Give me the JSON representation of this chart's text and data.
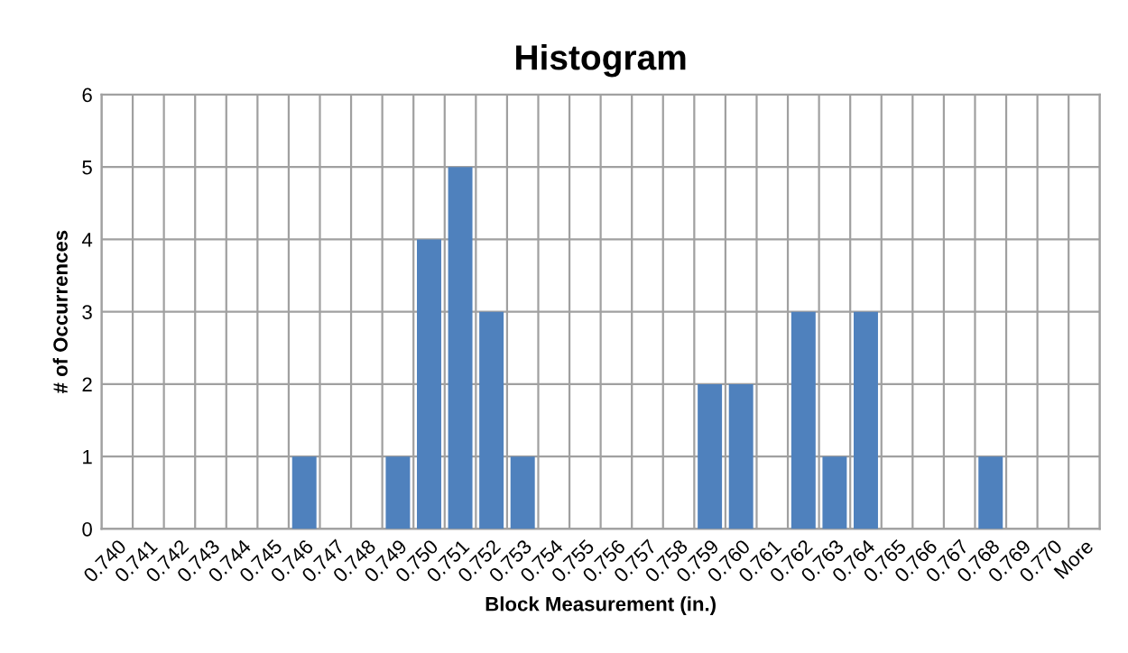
{
  "chart_data": {
    "type": "bar",
    "title": "Histogram",
    "xlabel": "Block Measurement (in.)",
    "ylabel": "# of Occurrences",
    "categories": [
      "0.740",
      "0.741",
      "0.742",
      "0.743",
      "0.744",
      "0.745",
      "0.746",
      "0.747",
      "0.748",
      "0.749",
      "0.750",
      "0.751",
      "0.752",
      "0.753",
      "0.754",
      "0.755",
      "0.756",
      "0.757",
      "0.758",
      "0.759",
      "0.760",
      "0.761",
      "0.762",
      "0.763",
      "0.764",
      "0.765",
      "0.766",
      "0.767",
      "0.768",
      "0.769",
      "0.770",
      "More"
    ],
    "values": [
      0,
      0,
      0,
      0,
      0,
      0,
      1,
      0,
      0,
      1,
      4,
      5,
      3,
      1,
      0,
      0,
      0,
      0,
      0,
      2,
      2,
      0,
      3,
      1,
      3,
      0,
      0,
      0,
      1,
      0,
      0,
      0
    ],
    "color": "#4f81bd",
    "ylim": [
      0,
      6
    ],
    "yticks": [
      0,
      1,
      2,
      3,
      4,
      5,
      6
    ],
    "grid": true,
    "legend": false
  }
}
